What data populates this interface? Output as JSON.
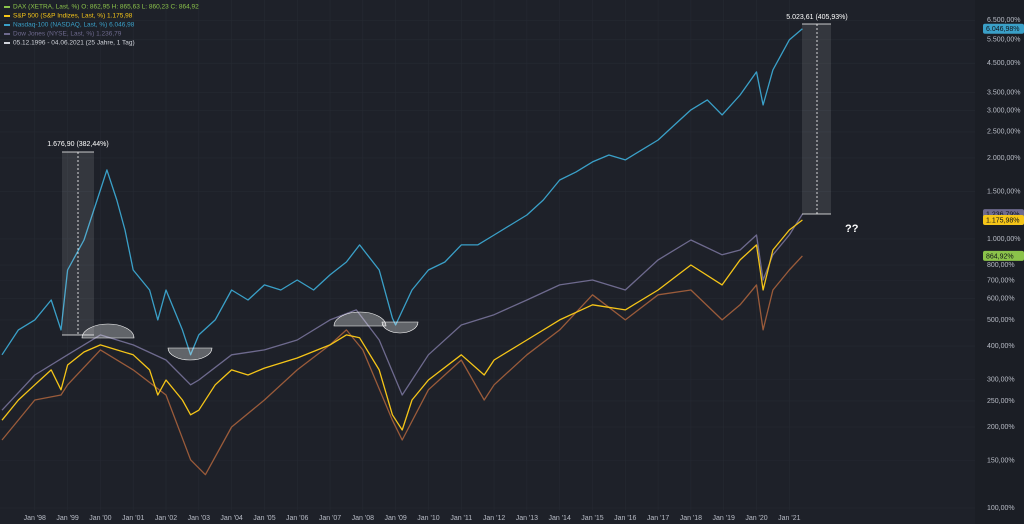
{
  "chart_data": {
    "type": "line",
    "log_scale": true,
    "grid": true,
    "legend": [
      {
        "text": "DAX (XETRA, Last, %)  O: 862,95  H: 865,63  L: 860,23  C: 864,92",
        "color": "#8bc34a"
      },
      {
        "text": "S&P 500 (S&P Indizes, Last, %)  1.175,98",
        "color": "#f5c518"
      },
      {
        "text": "Nasdaq-100 (NASDAQ, Last, %)  6.046,98",
        "color": "#3aa0c8"
      },
      {
        "text": "Dow Jones (NYSE, Last, %)  1.236,79",
        "color": "#6e6a8e"
      },
      {
        "text": "05.12.1996 - 04.06.2021  (25 Jahre, 1 Tag)",
        "color": "#d0d3da"
      }
    ],
    "xlim": [
      1996.94,
      2026.66
    ],
    "xticks": [
      {
        "value": 1998,
        "label": "Jan '98"
      },
      {
        "value": 1999,
        "label": "Jan '99"
      },
      {
        "value": 2000,
        "label": "Jan '00"
      },
      {
        "value": 2001,
        "label": "Jan '01"
      },
      {
        "value": 2002,
        "label": "Jan '02"
      },
      {
        "value": 2003,
        "label": "Jan '03"
      },
      {
        "value": 2004,
        "label": "Jan '04"
      },
      {
        "value": 2005,
        "label": "Jan '05"
      },
      {
        "value": 2006,
        "label": "Jan '06"
      },
      {
        "value": 2007,
        "label": "Jan '07"
      },
      {
        "value": 2008,
        "label": "Jan '08"
      },
      {
        "value": 2009,
        "label": "Jan '09"
      },
      {
        "value": 2010,
        "label": "Jan '10"
      },
      {
        "value": 2011,
        "label": "Jan '11"
      },
      {
        "value": 2012,
        "label": "Jan '12"
      },
      {
        "value": 2013,
        "label": "Jan '13"
      },
      {
        "value": 2014,
        "label": "Jan '14"
      },
      {
        "value": 2015,
        "label": "Jan '15"
      },
      {
        "value": 2016,
        "label": "Jan '16"
      },
      {
        "value": 2017,
        "label": "Jan '17"
      },
      {
        "value": 2018,
        "label": "Jan '18"
      },
      {
        "value": 2019,
        "label": "Jan '19"
      },
      {
        "value": 2020,
        "label": "Jan '20"
      },
      {
        "value": 2021,
        "label": "Jan '21"
      }
    ],
    "ylim": [
      98.3,
      7730
    ],
    "yticks": [
      {
        "value": 100,
        "label": "100,00%"
      },
      {
        "value": 150,
        "label": "150,00%"
      },
      {
        "value": 200,
        "label": "200,00%"
      },
      {
        "value": 250,
        "label": "250,00%"
      },
      {
        "value": 300,
        "label": "300,00%"
      },
      {
        "value": 400,
        "label": "400,00%"
      },
      {
        "value": 500,
        "label": "500,00%"
      },
      {
        "value": 600,
        "label": "600,00%"
      },
      {
        "value": 700,
        "label": "700,00%"
      },
      {
        "value": 800,
        "label": "800,00%"
      },
      {
        "value": 1000,
        "label": "1.000,00%"
      },
      {
        "value": 1500,
        "label": "1.500,00%"
      },
      {
        "value": 2000,
        "label": "2.000,00%"
      },
      {
        "value": 2500,
        "label": "2.500,00%"
      },
      {
        "value": 3000,
        "label": "3.000,00%"
      },
      {
        "value": 3500,
        "label": "3.500,00%"
      },
      {
        "value": 4500,
        "label": "4.500,00%"
      },
      {
        "value": 5500,
        "label": "5.500,00%"
      },
      {
        "value": 6500,
        "label": "6.500,00%"
      }
    ],
    "series": [
      {
        "name": "DAX",
        "color": "#9a5b3a",
        "last_label": "864,92%",
        "last_label_color": "#8bc34a",
        "x": [
          1997.0,
          1998.0,
          1998.8,
          1999.0,
          2000.0,
          2001.0,
          2002.0,
          2002.75,
          2003.2,
          2004.0,
          2005.0,
          2006.0,
          2007.0,
          2007.5,
          2008.0,
          2008.9,
          2009.2,
          2010.0,
          2011.0,
          2011.7,
          2012.0,
          2013.0,
          2014.0,
          2015.0,
          2016.0,
          2017.0,
          2018.0,
          2018.95,
          2019.5,
          2020.0,
          2020.2,
          2020.5,
          2021.0,
          2021.4
        ],
        "values": [
          179,
          252,
          263,
          287,
          387,
          326,
          263,
          151,
          133,
          200,
          252,
          326,
          404,
          459,
          387,
          212,
          179,
          275,
          355,
          252,
          287,
          371,
          459,
          620,
          500,
          620,
          646,
          500,
          569,
          675,
          459,
          646,
          767,
          864.92
        ]
      },
      {
        "name": "Dow Jones",
        "color": "#6e6a8e",
        "last_label": "1.236,79%",
        "last_label_color": "#6e6a8e",
        "x": [
          1997.0,
          1998.0,
          1999.0,
          2000.0,
          2001.0,
          2002.0,
          2002.75,
          2003.0,
          2004.0,
          2005.0,
          2006.0,
          2007.0,
          2007.8,
          2008.5,
          2009.2,
          2010.0,
          2011.0,
          2012.0,
          2013.0,
          2014.0,
          2015.0,
          2016.0,
          2017.0,
          2018.0,
          2018.95,
          2019.5,
          2020.0,
          2020.2,
          2020.5,
          2021.0,
          2021.4
        ],
        "values": [
          231,
          312,
          371,
          440,
          404,
          355,
          287,
          299,
          371,
          387,
          421,
          500,
          545,
          421,
          263,
          371,
          479,
          523,
          593,
          675,
          704,
          646,
          836,
          991,
          873,
          910,
          1034,
          704,
          873,
          1034,
          1236.79
        ]
      },
      {
        "name": "S&P 500",
        "color": "#f5c518",
        "last_label": "1.175,98%",
        "last_label_color": "#f5c518",
        "x": [
          1997.0,
          1997.5,
          1998.0,
          1998.5,
          1998.8,
          1999.0,
          1999.5,
          2000.0,
          2000.5,
          2001.0,
          2001.5,
          2001.75,
          2002.0,
          2002.5,
          2002.75,
          2003.0,
          2003.5,
          2004.0,
          2004.5,
          2005.0,
          2006.0,
          2007.0,
          2007.5,
          2007.9,
          2008.5,
          2008.9,
          2009.2,
          2009.5,
          2010.0,
          2011.0,
          2011.7,
          2012.0,
          2013.0,
          2014.0,
          2015.0,
          2016.0,
          2017.0,
          2018.0,
          2018.95,
          2019.5,
          2020.0,
          2020.2,
          2020.5,
          2021.0,
          2021.4
        ],
        "values": [
          212,
          252,
          287,
          326,
          275,
          340,
          380,
          404,
          387,
          371,
          326,
          263,
          299,
          252,
          222,
          231,
          287,
          326,
          312,
          331,
          361,
          404,
          440,
          429,
          326,
          222,
          195,
          252,
          299,
          371,
          312,
          355,
          421,
          500,
          569,
          545,
          646,
          800,
          675,
          836,
          950,
          646,
          910,
          1080,
          1175.98
        ]
      },
      {
        "name": "Nasdaq-100",
        "color": "#3aa0c8",
        "last_label": "6.046,98%",
        "last_label_color": "#3aa0c8",
        "x": [
          1997.0,
          1997.5,
          1998.0,
          1998.5,
          1998.8,
          1999.0,
          1999.5,
          2000.0,
          2000.2,
          2000.5,
          2000.75,
          2001.0,
          2001.5,
          2001.75,
          2002.0,
          2002.5,
          2002.75,
          2003.0,
          2003.5,
          2004.0,
          2004.5,
          2005.0,
          2005.5,
          2006.0,
          2006.5,
          2007.0,
          2007.5,
          2007.9,
          2008.5,
          2008.9,
          2009.0,
          2009.5,
          2010.0,
          2010.5,
          2011.0,
          2011.5,
          2012.0,
          2012.5,
          2013.0,
          2013.5,
          2014.0,
          2014.5,
          2015.0,
          2015.5,
          2016.0,
          2016.5,
          2017.0,
          2017.5,
          2018.0,
          2018.5,
          2018.95,
          2019.5,
          2020.0,
          2020.2,
          2020.5,
          2021.0,
          2021.4
        ],
        "values": [
          371,
          459,
          500,
          593,
          459,
          767,
          991,
          1521,
          1806,
          1396,
          1080,
          767,
          646,
          500,
          646,
          459,
          371,
          440,
          500,
          646,
          593,
          675,
          646,
          704,
          646,
          735,
          821,
          950,
          767,
          508,
          479,
          646,
          767,
          821,
          950,
          950,
          1034,
          1127,
          1228,
          1396,
          1656,
          1775,
          1933,
          2052,
          1968,
          2143,
          2333,
          2655,
          3019,
          3288,
          2891,
          3428,
          4178,
          3148,
          4248,
          5495,
          6046.98
        ]
      }
    ],
    "annotations": [
      {
        "text": "1.676,90 (382,44%)"
      },
      {
        "text": "5.023,61 (405,93%)"
      },
      {
        "text": "??"
      }
    ]
  }
}
